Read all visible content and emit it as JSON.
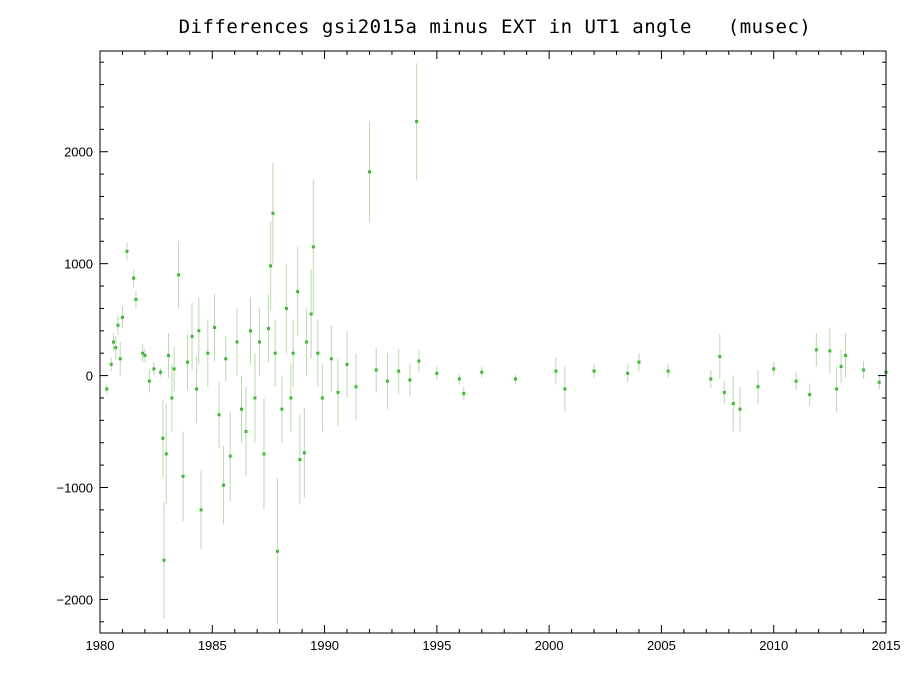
{
  "chart_data": {
    "type": "scatter",
    "title": "Differences gsi2015a minus EXT in UT1 angle   (musec)",
    "xlabel": "",
    "ylabel": "",
    "xlim": [
      1980,
      2015
    ],
    "ylim": [
      -2300,
      2900
    ],
    "xticks": [
      1980,
      1985,
      1990,
      1995,
      2000,
      2005,
      2010,
      2015
    ],
    "yticks": [
      -2000,
      -1000,
      0,
      1000,
      2000
    ],
    "ytick_labels": [
      "−2000",
      "−1000",
      "0",
      "1000",
      "2000"
    ],
    "grid": false,
    "colors": {
      "points": "#3cb832",
      "error_bars": "#b9d9ae"
    },
    "series": [
      {
        "points": [
          {
            "x": 1980.3,
            "y": -120,
            "err": 40
          },
          {
            "x": 1980.5,
            "y": 100,
            "err": 60
          },
          {
            "x": 1980.6,
            "y": 300,
            "err": 80
          },
          {
            "x": 1980.7,
            "y": 250,
            "err": 100
          },
          {
            "x": 1980.8,
            "y": 450,
            "err": 90
          },
          {
            "x": 1980.9,
            "y": 150,
            "err": 150
          },
          {
            "x": 1981.0,
            "y": 520,
            "err": 100
          },
          {
            "x": 1981.2,
            "y": 1110,
            "err": 80
          },
          {
            "x": 1981.5,
            "y": 870,
            "err": 80
          },
          {
            "x": 1981.6,
            "y": 680,
            "err": 80
          },
          {
            "x": 1981.9,
            "y": 200,
            "err": 80
          },
          {
            "x": 1982.0,
            "y": 180,
            "err": 60
          },
          {
            "x": 1982.2,
            "y": -50,
            "err": 100
          },
          {
            "x": 1982.4,
            "y": 60,
            "err": 60
          },
          {
            "x": 1982.7,
            "y": 30,
            "err": 40
          },
          {
            "x": 1982.8,
            "y": -560,
            "err": 350
          },
          {
            "x": 1982.85,
            "y": -1650,
            "err": 520
          },
          {
            "x": 1982.95,
            "y": -700,
            "err": 450
          },
          {
            "x": 1983.05,
            "y": 180,
            "err": 200
          },
          {
            "x": 1983.2,
            "y": -200,
            "err": 300
          },
          {
            "x": 1983.3,
            "y": 60,
            "err": 200
          },
          {
            "x": 1983.5,
            "y": 900,
            "err": 300
          },
          {
            "x": 1983.7,
            "y": -900,
            "err": 400
          },
          {
            "x": 1983.9,
            "y": 120,
            "err": 250
          },
          {
            "x": 1984.1,
            "y": 350,
            "err": 300
          },
          {
            "x": 1984.3,
            "y": -120,
            "err": 300
          },
          {
            "x": 1984.4,
            "y": 400,
            "err": 300
          },
          {
            "x": 1984.5,
            "y": -1200,
            "err": 350
          },
          {
            "x": 1984.8,
            "y": 200,
            "err": 300
          },
          {
            "x": 1985.1,
            "y": 430,
            "err": 300
          },
          {
            "x": 1985.3,
            "y": -350,
            "err": 300
          },
          {
            "x": 1985.5,
            "y": -980,
            "err": 350
          },
          {
            "x": 1985.6,
            "y": 150,
            "err": 200
          },
          {
            "x": 1985.8,
            "y": -720,
            "err": 400
          },
          {
            "x": 1986.1,
            "y": 300,
            "err": 300
          },
          {
            "x": 1986.3,
            "y": -300,
            "err": 300
          },
          {
            "x": 1986.5,
            "y": -500,
            "err": 400
          },
          {
            "x": 1986.7,
            "y": 400,
            "err": 300
          },
          {
            "x": 1986.9,
            "y": -200,
            "err": 400
          },
          {
            "x": 1987.1,
            "y": 300,
            "err": 300
          },
          {
            "x": 1987.3,
            "y": -700,
            "err": 500
          },
          {
            "x": 1987.5,
            "y": 420,
            "err": 300
          },
          {
            "x": 1987.6,
            "y": 980,
            "err": 400
          },
          {
            "x": 1987.7,
            "y": 1450,
            "err": 450
          },
          {
            "x": 1987.8,
            "y": 200,
            "err": 300
          },
          {
            "x": 1987.9,
            "y": -1570,
            "err": 650
          },
          {
            "x": 1988.1,
            "y": -300,
            "err": 300
          },
          {
            "x": 1988.3,
            "y": 600,
            "err": 400
          },
          {
            "x": 1988.5,
            "y": -200,
            "err": 300
          },
          {
            "x": 1988.6,
            "y": 200,
            "err": 300
          },
          {
            "x": 1988.8,
            "y": 750,
            "err": 400
          },
          {
            "x": 1988.9,
            "y": -750,
            "err": 400
          },
          {
            "x": 1989.1,
            "y": -690,
            "err": 400
          },
          {
            "x": 1989.2,
            "y": 300,
            "err": 300
          },
          {
            "x": 1989.4,
            "y": 550,
            "err": 400
          },
          {
            "x": 1989.5,
            "y": 1150,
            "err": 600
          },
          {
            "x": 1989.7,
            "y": 200,
            "err": 300
          },
          {
            "x": 1989.9,
            "y": -200,
            "err": 300
          },
          {
            "x": 1990.3,
            "y": 150,
            "err": 300
          },
          {
            "x": 1990.6,
            "y": -150,
            "err": 300
          },
          {
            "x": 1991.0,
            "y": 100,
            "err": 300
          },
          {
            "x": 1991.4,
            "y": -100,
            "err": 300
          },
          {
            "x": 1992.0,
            "y": 1820,
            "err": 450
          },
          {
            "x": 1992.3,
            "y": 50,
            "err": 200
          },
          {
            "x": 1992.8,
            "y": -50,
            "err": 250
          },
          {
            "x": 1993.3,
            "y": 40,
            "err": 200
          },
          {
            "x": 1993.8,
            "y": -40,
            "err": 150
          },
          {
            "x": 1994.1,
            "y": 2270,
            "err": 520
          },
          {
            "x": 1994.2,
            "y": 130,
            "err": 100
          },
          {
            "x": 1995.0,
            "y": 20,
            "err": 60
          },
          {
            "x": 1996.0,
            "y": -30,
            "err": 50
          },
          {
            "x": 1996.2,
            "y": -160,
            "err": 60
          },
          {
            "x": 1997.0,
            "y": 30,
            "err": 50
          },
          {
            "x": 1998.5,
            "y": -30,
            "err": 40
          },
          {
            "x": 2000.3,
            "y": 40,
            "err": 120
          },
          {
            "x": 2000.7,
            "y": -120,
            "err": 200
          },
          {
            "x": 2002.0,
            "y": 40,
            "err": 60
          },
          {
            "x": 2003.5,
            "y": 20,
            "err": 80
          },
          {
            "x": 2004.0,
            "y": 120,
            "err": 80
          },
          {
            "x": 2005.3,
            "y": 40,
            "err": 60
          },
          {
            "x": 2007.2,
            "y": -30,
            "err": 80
          },
          {
            "x": 2007.6,
            "y": 170,
            "err": 200
          },
          {
            "x": 2007.8,
            "y": -150,
            "err": 100
          },
          {
            "x": 2008.2,
            "y": -250,
            "err": 250
          },
          {
            "x": 2008.5,
            "y": -300,
            "err": 200
          },
          {
            "x": 2009.3,
            "y": -100,
            "err": 150
          },
          {
            "x": 2010.0,
            "y": 60,
            "err": 60
          },
          {
            "x": 2011.0,
            "y": -50,
            "err": 80
          },
          {
            "x": 2011.6,
            "y": -170,
            "err": 100
          },
          {
            "x": 2011.9,
            "y": 230,
            "err": 150
          },
          {
            "x": 2012.5,
            "y": 220,
            "err": 200
          },
          {
            "x": 2012.8,
            "y": -120,
            "err": 200
          },
          {
            "x": 2013.0,
            "y": 80,
            "err": 150
          },
          {
            "x": 2013.2,
            "y": 180,
            "err": 200
          },
          {
            "x": 2014.0,
            "y": 50,
            "err": 80
          },
          {
            "x": 2014.7,
            "y": -60,
            "err": 60
          },
          {
            "x": 2015.0,
            "y": 30,
            "err": 40
          }
        ]
      }
    ]
  }
}
